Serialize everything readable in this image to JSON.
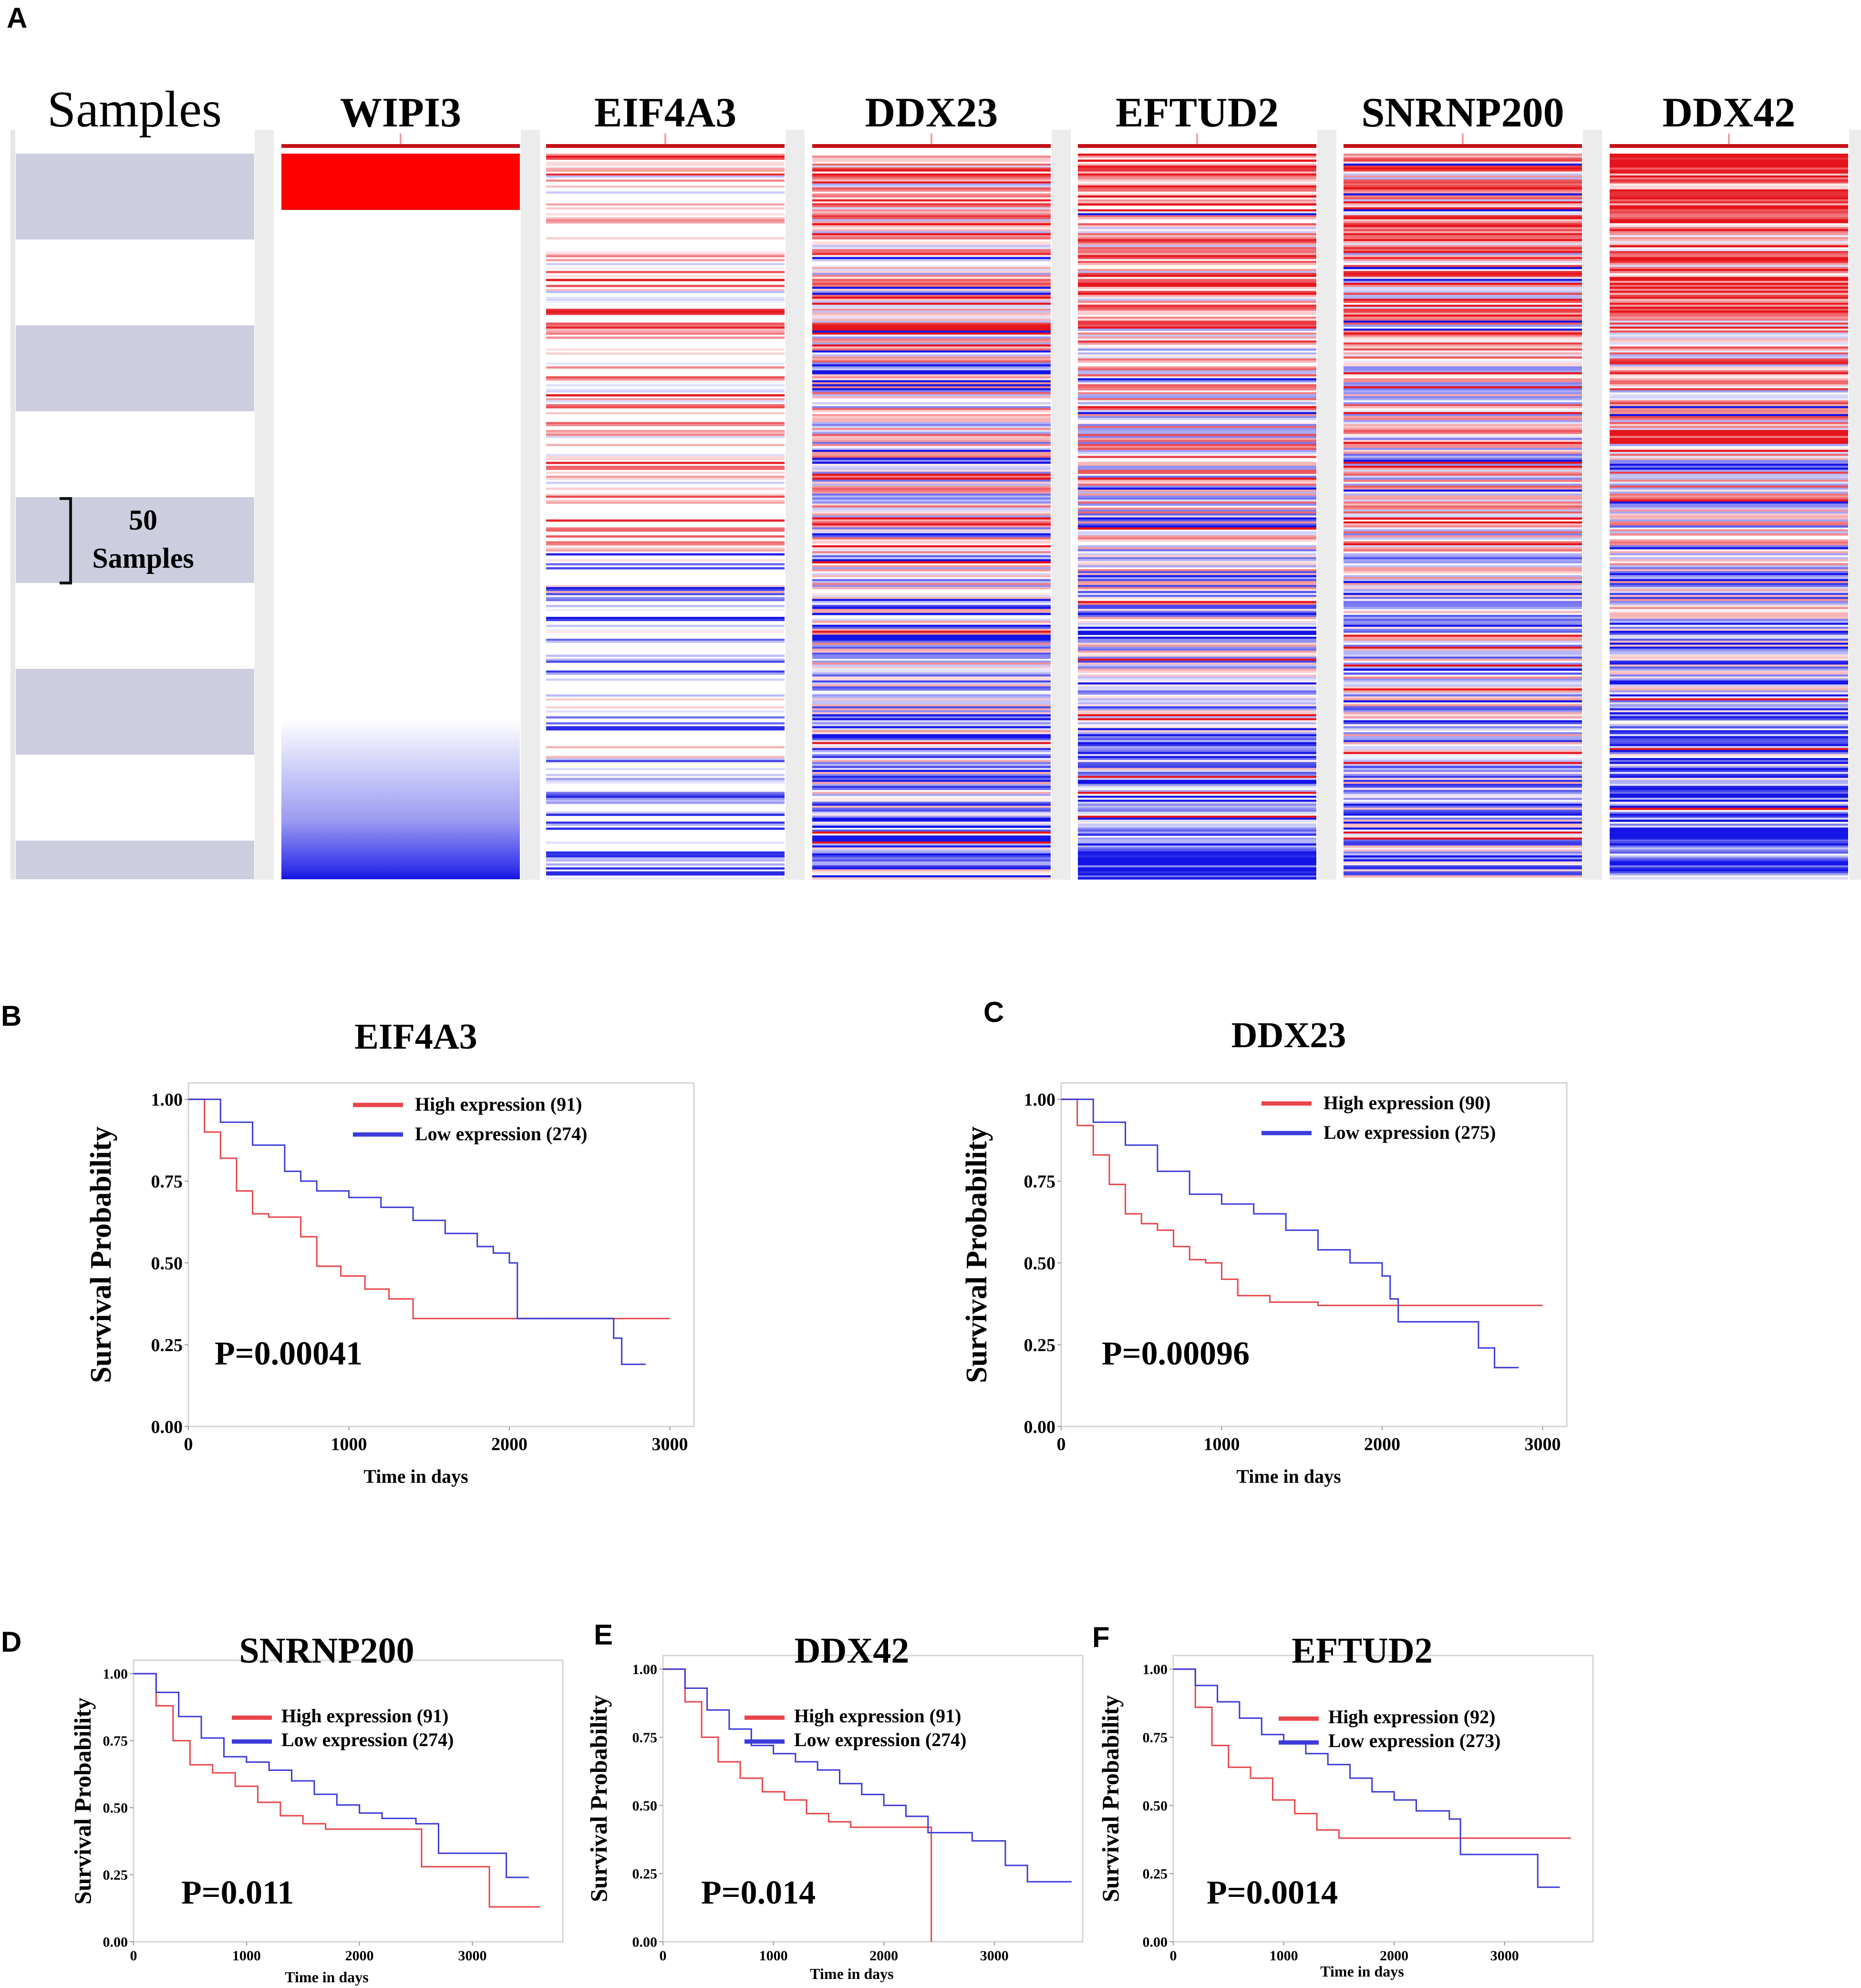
{
  "panel_letters": [
    "A",
    "B",
    "C",
    "D",
    "E",
    "F"
  ],
  "heatmap": {
    "samples_label": "Samples",
    "scale_number": "50",
    "scale_unit": "Samples",
    "colors": {
      "high": "#e8141c",
      "low": "#1414e6",
      "mid": "#ffffff",
      "band": "#cdcde0"
    },
    "columns": [
      {
        "name": "WIPI3"
      },
      {
        "name": "EIF4A3"
      },
      {
        "name": "DDX23"
      },
      {
        "name": "EFTUD2"
      },
      {
        "name": "SNRNP200"
      },
      {
        "name": "DDX42"
      }
    ]
  },
  "chart_data": [
    {
      "type": "line",
      "panel": "B",
      "title": "EIF4A3",
      "xlabel": "Time in days",
      "ylabel": "Survival Probability",
      "xlim": [
        0,
        3150
      ],
      "ylim": [
        0,
        1.05
      ],
      "xticks": [
        0,
        1000,
        2000,
        3000
      ],
      "yticks": [
        "0.00",
        "0.25",
        "0.50",
        "0.75",
        "1.00"
      ],
      "pvalue": "P=0.00041",
      "series": [
        {
          "name": "High expression (91)",
          "color": "#e8454a",
          "points": [
            [
              0,
              1.0
            ],
            [
              100,
              0.9
            ],
            [
              200,
              0.82
            ],
            [
              300,
              0.72
            ],
            [
              400,
              0.65
            ],
            [
              500,
              0.64
            ],
            [
              650,
              0.64
            ],
            [
              700,
              0.58
            ],
            [
              800,
              0.49
            ],
            [
              950,
              0.46
            ],
            [
              1100,
              0.42
            ],
            [
              1250,
              0.39
            ],
            [
              1400,
              0.33
            ],
            [
              1600,
              0.33
            ],
            [
              2600,
              0.33
            ],
            [
              3000,
              0.33
            ]
          ]
        },
        {
          "name": "Low expression (274)",
          "color": "#3b3bd9",
          "points": [
            [
              0,
              1.0
            ],
            [
              200,
              0.93
            ],
            [
              400,
              0.86
            ],
            [
              600,
              0.78
            ],
            [
              700,
              0.75
            ],
            [
              800,
              0.72
            ],
            [
              1000,
              0.7
            ],
            [
              1200,
              0.67
            ],
            [
              1400,
              0.63
            ],
            [
              1600,
              0.59
            ],
            [
              1800,
              0.55
            ],
            [
              1900,
              0.53
            ],
            [
              2000,
              0.5
            ],
            [
              2050,
              0.33
            ],
            [
              2600,
              0.33
            ],
            [
              2650,
              0.27
            ],
            [
              2700,
              0.19
            ],
            [
              2850,
              0.19
            ]
          ]
        }
      ]
    },
    {
      "type": "line",
      "panel": "C",
      "title": "DDX23",
      "xlabel": "Time in days",
      "ylabel": "Survival Probability",
      "xlim": [
        0,
        3150
      ],
      "ylim": [
        0,
        1.05
      ],
      "xticks": [
        0,
        1000,
        2000,
        3000
      ],
      "yticks": [
        "0.00",
        "0.25",
        "0.50",
        "0.75",
        "1.00"
      ],
      "pvalue": "P=0.00096",
      "series": [
        {
          "name": "High expression (90)",
          "color": "#e8454a",
          "points": [
            [
              0,
              1.0
            ],
            [
              100,
              0.92
            ],
            [
              200,
              0.83
            ],
            [
              300,
              0.74
            ],
            [
              400,
              0.65
            ],
            [
              500,
              0.62
            ],
            [
              600,
              0.6
            ],
            [
              700,
              0.55
            ],
            [
              800,
              0.51
            ],
            [
              900,
              0.5
            ],
            [
              1000,
              0.45
            ],
            [
              1100,
              0.4
            ],
            [
              1300,
              0.38
            ],
            [
              1600,
              0.37
            ],
            [
              3000,
              0.37
            ]
          ]
        },
        {
          "name": "Low expression (275)",
          "color": "#3b3bd9",
          "points": [
            [
              0,
              1.0
            ],
            [
              200,
              0.93
            ],
            [
              400,
              0.86
            ],
            [
              600,
              0.78
            ],
            [
              800,
              0.71
            ],
            [
              1000,
              0.68
            ],
            [
              1200,
              0.65
            ],
            [
              1400,
              0.6
            ],
            [
              1600,
              0.54
            ],
            [
              1800,
              0.5
            ],
            [
              2000,
              0.46
            ],
            [
              2050,
              0.39
            ],
            [
              2100,
              0.32
            ],
            [
              2500,
              0.32
            ],
            [
              2600,
              0.24
            ],
            [
              2700,
              0.18
            ],
            [
              2850,
              0.18
            ]
          ]
        }
      ]
    },
    {
      "type": "line",
      "panel": "D",
      "title": "SNRNP200",
      "xlabel": "Time in days",
      "ylabel": "Survival Probability",
      "xlim": [
        0,
        3800
      ],
      "ylim": [
        0,
        1.05
      ],
      "xticks": [
        0,
        1000,
        2000,
        3000
      ],
      "yticks": [
        "0.00",
        "0.25",
        "0.50",
        "0.75",
        "1.00"
      ],
      "pvalue": "P=0.011",
      "series": [
        {
          "name": "High expression (91)",
          "color": "#e8454a",
          "points": [
            [
              0,
              1.0
            ],
            [
              200,
              0.88
            ],
            [
              350,
              0.75
            ],
            [
              500,
              0.66
            ],
            [
              700,
              0.63
            ],
            [
              900,
              0.58
            ],
            [
              1100,
              0.52
            ],
            [
              1300,
              0.47
            ],
            [
              1500,
              0.44
            ],
            [
              1700,
              0.42
            ],
            [
              2500,
              0.42
            ],
            [
              2550,
              0.28
            ],
            [
              3100,
              0.28
            ],
            [
              3150,
              0.13
            ],
            [
              3600,
              0.13
            ]
          ]
        },
        {
          "name": "Low expression (274)",
          "color": "#3b3bd9",
          "points": [
            [
              0,
              1.0
            ],
            [
              200,
              0.93
            ],
            [
              400,
              0.84
            ],
            [
              600,
              0.76
            ],
            [
              800,
              0.69
            ],
            [
              1000,
              0.67
            ],
            [
              1200,
              0.64
            ],
            [
              1400,
              0.6
            ],
            [
              1600,
              0.55
            ],
            [
              1800,
              0.51
            ],
            [
              2000,
              0.48
            ],
            [
              2200,
              0.46
            ],
            [
              2500,
              0.44
            ],
            [
              2700,
              0.33
            ],
            [
              3200,
              0.33
            ],
            [
              3300,
              0.24
            ],
            [
              3500,
              0.24
            ]
          ]
        }
      ]
    },
    {
      "type": "line",
      "panel": "E",
      "title": "DDX42",
      "xlabel": "Time in days",
      "ylabel": "Survival Probability",
      "xlim": [
        0,
        3800
      ],
      "ylim": [
        0,
        1.05
      ],
      "xticks": [
        0,
        1000,
        2000,
        3000
      ],
      "yticks": [
        "0.00",
        "0.25",
        "0.50",
        "0.75",
        "1.00"
      ],
      "pvalue": "P=0.014",
      "series": [
        {
          "name": "High expression (91)",
          "color": "#e8454a",
          "points": [
            [
              0,
              1.0
            ],
            [
              200,
              0.88
            ],
            [
              350,
              0.75
            ],
            [
              500,
              0.66
            ],
            [
              700,
              0.6
            ],
            [
              900,
              0.55
            ],
            [
              1100,
              0.52
            ],
            [
              1300,
              0.47
            ],
            [
              1500,
              0.44
            ],
            [
              1700,
              0.42
            ],
            [
              2400,
              0.42
            ],
            [
              2430,
              0.0
            ]
          ]
        },
        {
          "name": "Low expression (274)",
          "color": "#3b3bd9",
          "points": [
            [
              0,
              1.0
            ],
            [
              200,
              0.93
            ],
            [
              400,
              0.85
            ],
            [
              600,
              0.78
            ],
            [
              800,
              0.72
            ],
            [
              1000,
              0.69
            ],
            [
              1200,
              0.66
            ],
            [
              1400,
              0.63
            ],
            [
              1600,
              0.58
            ],
            [
              1800,
              0.54
            ],
            [
              2000,
              0.5
            ],
            [
              2200,
              0.46
            ],
            [
              2400,
              0.4
            ],
            [
              2800,
              0.37
            ],
            [
              3100,
              0.28
            ],
            [
              3300,
              0.22
            ],
            [
              3700,
              0.22
            ]
          ]
        }
      ]
    },
    {
      "type": "line",
      "panel": "F",
      "title": "EFTUD2",
      "xlabel": "Time in days",
      "ylabel": "Survival Probability",
      "xlim": [
        0,
        3800
      ],
      "ylim": [
        0,
        1.05
      ],
      "xticks": [
        0,
        1000,
        2000,
        3000
      ],
      "yticks": [
        "0.00",
        "0.25",
        "0.50",
        "0.75",
        "1.00"
      ],
      "pvalue": "P=0.0014",
      "series": [
        {
          "name": "High expression (92)",
          "color": "#e8454a",
          "points": [
            [
              0,
              1.0
            ],
            [
              200,
              0.86
            ],
            [
              350,
              0.72
            ],
            [
              500,
              0.64
            ],
            [
              700,
              0.6
            ],
            [
              900,
              0.52
            ],
            [
              1100,
              0.47
            ],
            [
              1300,
              0.41
            ],
            [
              1500,
              0.38
            ],
            [
              2500,
              0.38
            ],
            [
              3600,
              0.38
            ]
          ]
        },
        {
          "name": "Low expression (273)",
          "color": "#3b3bd9",
          "points": [
            [
              0,
              1.0
            ],
            [
              200,
              0.94
            ],
            [
              400,
              0.88
            ],
            [
              600,
              0.82
            ],
            [
              800,
              0.76
            ],
            [
              1000,
              0.73
            ],
            [
              1200,
              0.69
            ],
            [
              1400,
              0.65
            ],
            [
              1600,
              0.6
            ],
            [
              1800,
              0.55
            ],
            [
              2000,
              0.52
            ],
            [
              2200,
              0.48
            ],
            [
              2500,
              0.45
            ],
            [
              2600,
              0.32
            ],
            [
              3000,
              0.32
            ],
            [
              3300,
              0.2
            ],
            [
              3500,
              0.2
            ]
          ]
        }
      ]
    }
  ]
}
